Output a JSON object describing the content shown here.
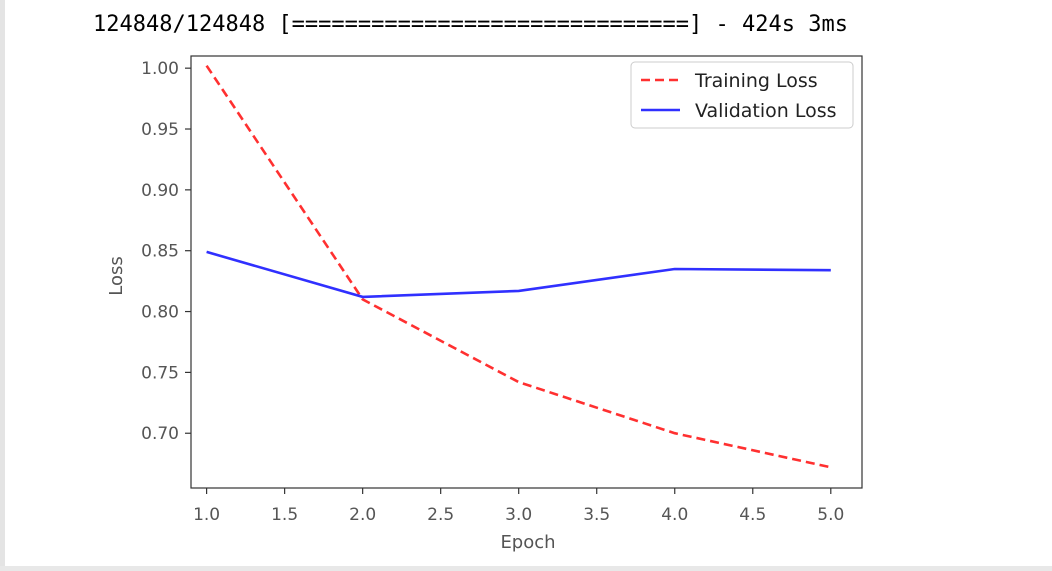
{
  "output": {
    "progress_text": "124848/124848 [==============================] - 424s 3ms"
  },
  "chart_data": {
    "type": "line",
    "xlabel": "Epoch",
    "ylabel": "Loss",
    "xlim": [
      0.9,
      5.2
    ],
    "ylim": [
      0.655,
      1.01
    ],
    "xticks": [
      1.0,
      1.5,
      2.0,
      2.5,
      3.0,
      3.5,
      4.0,
      4.5,
      5.0
    ],
    "xtick_labels": [
      "1.0",
      "1.5",
      "2.0",
      "2.5",
      "3.0",
      "3.5",
      "4.0",
      "4.5",
      "5.0"
    ],
    "yticks": [
      0.7,
      0.75,
      0.8,
      0.85,
      0.9,
      0.95,
      1.0
    ],
    "ytick_labels": [
      "0.70",
      "0.75",
      "0.80",
      "0.85",
      "0.90",
      "0.95",
      "1.00"
    ],
    "grid": false,
    "legend": {
      "placement": "top-right"
    },
    "x": [
      1,
      2,
      3,
      4,
      5
    ],
    "series": [
      {
        "name": "Training Loss",
        "values": [
          1.002,
          0.81,
          0.742,
          0.7,
          0.672
        ],
        "color": "#ff3030",
        "dash": "dashed"
      },
      {
        "name": "Validation Loss",
        "values": [
          0.849,
          0.812,
          0.817,
          0.835,
          0.834
        ],
        "color": "#3030ff",
        "dash": "solid"
      }
    ]
  }
}
